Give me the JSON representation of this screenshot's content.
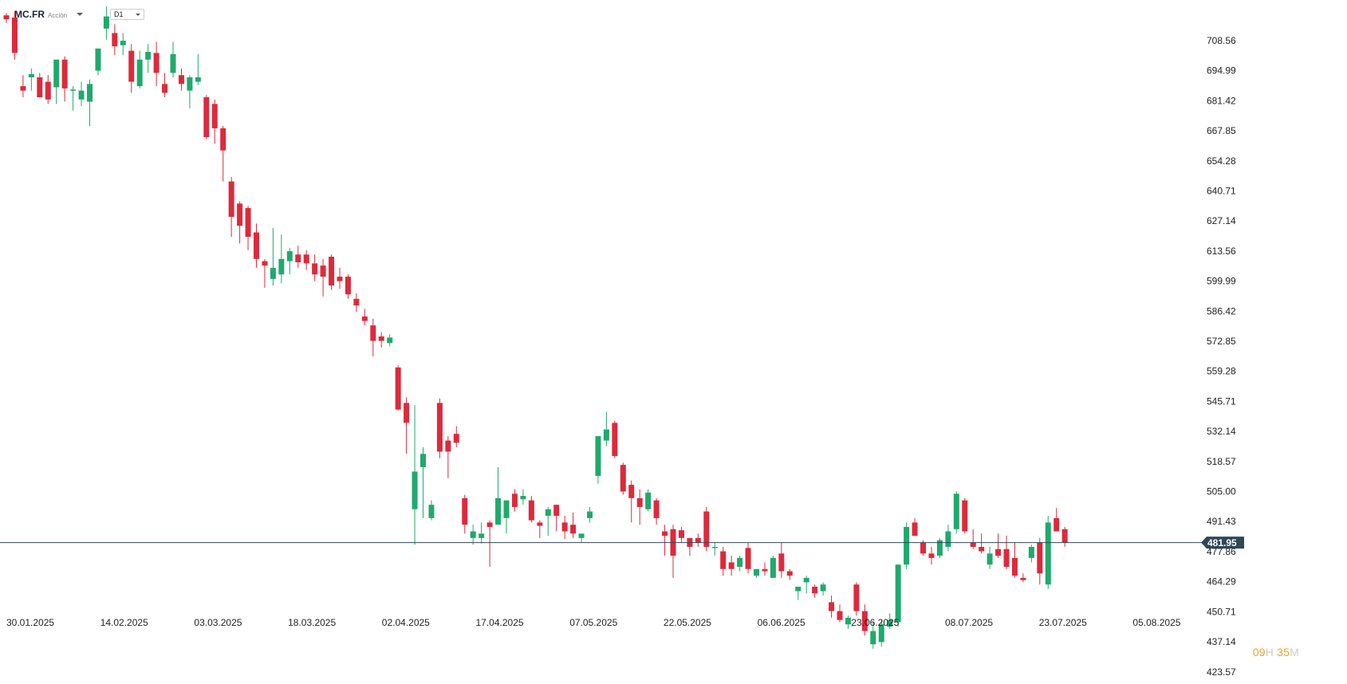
{
  "header": {
    "symbol": "MC.FR",
    "instrument_type": "Acción",
    "timeframe": "D1"
  },
  "countdown": {
    "hours": "09",
    "hours_unit": "H",
    "minutes": "35",
    "minutes_unit": "M"
  },
  "colors": {
    "up": "#1faa6d",
    "down": "#dc2a3c",
    "price_line": "#2f4858",
    "price_tag": "#2f4858"
  },
  "chart_data": {
    "type": "candlestick",
    "y_axis_ticks": [
      "708.56",
      "694.99",
      "681.42",
      "667.85",
      "654.28",
      "640.71",
      "627.14",
      "613.56",
      "599.99",
      "586.42",
      "572.85",
      "559.28",
      "545.71",
      "532.14",
      "518.57",
      "505.00",
      "491.43",
      "477.86",
      "464.29",
      "450.71",
      "437.14",
      "423.57"
    ],
    "x_axis_ticks": [
      "30.01.2025",
      "14.02.2025",
      "03.03.2025",
      "18.03.2025",
      "02.04.2025",
      "17.04.2025",
      "07.05.2025",
      "22.05.2025",
      "06.06.2025",
      "23.06.2025",
      "08.07.2025",
      "23.07.2025",
      "05.08.2025"
    ],
    "ylim": [
      423.57,
      722.13
    ],
    "current_price": "481.95",
    "ohlc": [
      [
        720.0,
        721.0,
        716.5,
        718.2
      ],
      [
        719.0,
        722.0,
        700.0,
        703.0
      ],
      [
        688.0,
        693.0,
        683.0,
        686.0
      ],
      [
        692.0,
        696.0,
        686.0,
        693.5
      ],
      [
        692.0,
        694.0,
        683.0,
        683.0
      ],
      [
        690.0,
        693.0,
        680.0,
        682.0
      ],
      [
        687.5,
        699.5,
        680.0,
        700.0
      ],
      [
        700.0,
        701.5,
        681.0,
        687.0
      ],
      [
        686.0,
        688.0,
        677.0,
        686.5
      ],
      [
        682.0,
        690.0,
        679.0,
        686.0
      ],
      [
        681.0,
        691.0,
        670.0,
        689.0
      ],
      [
        695.0,
        705.0,
        693.0,
        705.0
      ],
      [
        714.0,
        724.0,
        709.0,
        719.5
      ],
      [
        712.0,
        716.0,
        702.0,
        706.0
      ],
      [
        706.5,
        712.0,
        702.0,
        708.5
      ],
      [
        704.0,
        707.0,
        685.0,
        690.0
      ],
      [
        688.0,
        704.0,
        687.0,
        700.0
      ],
      [
        700.0,
        707.0,
        694.0,
        703.5
      ],
      [
        703.0,
        708.0,
        688.0,
        694.0
      ],
      [
        689.0,
        694.0,
        683.0,
        685.0
      ],
      [
        694.0,
        708.0,
        692.0,
        702.5
      ],
      [
        693.0,
        696.0,
        686.0,
        689.0
      ],
      [
        686.0,
        693.0,
        678.0,
        692.0
      ],
      [
        690.0,
        702.5,
        688.5,
        692.0
      ],
      [
        683.0,
        684.0,
        664.0,
        665.0
      ],
      [
        680.0,
        682.0,
        662.0,
        669.0
      ],
      [
        669.0,
        670.0,
        645.0,
        659.0
      ],
      [
        645.0,
        647.0,
        620.0,
        629.0
      ],
      [
        635.0,
        636.0,
        617.0,
        625.0
      ],
      [
        633.0,
        634.0,
        614.0,
        620.0
      ],
      [
        622.0,
        626.0,
        606.0,
        610.0
      ],
      [
        609.0,
        610.0,
        597.0,
        607.0
      ],
      [
        601.0,
        624.0,
        598.0,
        606.0
      ],
      [
        603.0,
        621.0,
        599.0,
        610.0
      ],
      [
        609.0,
        615.0,
        603.0,
        613.5
      ],
      [
        612.0,
        616.0,
        606.0,
        608.5
      ],
      [
        612.0,
        614.0,
        605.0,
        608.0
      ],
      [
        608.0,
        612.0,
        600.0,
        603.0
      ],
      [
        607.0,
        610.0,
        593.0,
        602.0
      ],
      [
        611.0,
        612.0,
        596.0,
        598.0
      ],
      [
        602.0,
        606.0,
        596.5,
        600.0
      ],
      [
        602.0,
        603.0,
        592.0,
        594.0
      ],
      [
        592.0,
        594.5,
        586.0,
        589.0
      ],
      [
        584.0,
        587.5,
        580.0,
        582.0
      ],
      [
        580.0,
        583.0,
        566.0,
        573.0
      ],
      [
        575.0,
        577.0,
        570.0,
        573.0
      ],
      [
        572.0,
        576.0,
        570.5,
        574.5
      ],
      [
        561.0,
        562.0,
        541.5,
        542.0
      ],
      [
        545.0,
        547.5,
        522.0,
        536.0
      ],
      [
        497.0,
        544.0,
        481.0,
        514.0
      ],
      [
        516.0,
        525.0,
        493.0,
        522.0
      ],
      [
        493.0,
        501.0,
        492.0,
        499.0
      ],
      [
        545.0,
        547.0,
        520.0,
        523.0
      ],
      [
        528.0,
        530.0,
        511.0,
        523.0
      ],
      [
        531.0,
        534.5,
        525.0,
        527.0
      ],
      [
        502.0,
        503.5,
        486.0,
        490.0
      ],
      [
        484.0,
        490.0,
        481.0,
        487.0
      ],
      [
        484.0,
        491.0,
        481.5,
        486.0
      ],
      [
        491.0,
        492.0,
        471.0,
        489.0
      ],
      [
        490.0,
        516.0,
        490.0,
        502.0
      ],
      [
        493.0,
        500.0,
        486.0,
        501.0
      ],
      [
        504.0,
        506.0,
        496.0,
        498.0
      ],
      [
        501.5,
        506.0,
        499.0,
        503.0
      ],
      [
        501.0,
        503.0,
        491.0,
        492.0
      ],
      [
        491.0,
        492.0,
        484.0,
        489.5
      ],
      [
        494.0,
        498.0,
        485.0,
        497.0
      ],
      [
        499.0,
        499.0,
        487.0,
        494.0
      ],
      [
        491.0,
        494.0,
        483.5,
        487.0
      ],
      [
        490.0,
        495.5,
        484.0,
        486.0
      ],
      [
        484.0,
        485.0,
        482.0,
        486.0
      ],
      [
        493.0,
        498.0,
        491.0,
        496.0
      ],
      [
        512.0,
        530.0,
        508.5,
        530.0
      ],
      [
        528.0,
        541.0,
        525.5,
        533.0
      ],
      [
        536.0,
        537.0,
        520.0,
        521.0
      ],
      [
        517.0,
        518.0,
        503.5,
        505.0
      ],
      [
        508.0,
        510.0,
        491.0,
        502.0
      ],
      [
        502.0,
        506.0,
        490.0,
        498.0
      ],
      [
        497.0,
        506.0,
        496.0,
        504.5
      ],
      [
        501.0,
        502.0,
        490.0,
        493.0
      ],
      [
        487.0,
        490.0,
        476.0,
        485.0
      ],
      [
        488.0,
        490.0,
        466.0,
        476.0
      ],
      [
        487.5,
        489.0,
        482.0,
        484.0
      ],
      [
        484.0,
        484.0,
        476.0,
        480.0
      ],
      [
        484.0,
        486.0,
        480.0,
        482.0
      ],
      [
        496.0,
        498.0,
        478.0,
        480.0
      ],
      [
        480.0,
        482.0,
        476.0,
        480.0
      ],
      [
        478.0,
        480.0,
        467.0,
        470.0
      ],
      [
        473.0,
        476.0,
        467.0,
        470.0
      ],
      [
        471.0,
        476.0,
        469.0,
        475.0
      ],
      [
        479.5,
        482.0,
        468.0,
        470.0
      ],
      [
        467.0,
        470.0,
        466.0,
        470.0
      ],
      [
        470.0,
        473.0,
        467.0,
        469.0
      ],
      [
        466.0,
        476.0,
        466.0,
        475.0
      ],
      [
        477.0,
        482.0,
        466.0,
        469.0
      ],
      [
        469.0,
        470.0,
        465.0,
        467.0
      ],
      [
        460.0,
        462.0,
        456.0,
        462.0
      ],
      [
        464.0,
        467.0,
        459.0,
        466.0
      ],
      [
        462.0,
        463.0,
        457.0,
        459.0
      ],
      [
        460.0,
        464.0,
        458.0,
        463.0
      ],
      [
        455.0,
        458.0,
        448.0,
        451.0
      ],
      [
        451.0,
        454.0,
        446.0,
        447.0
      ],
      [
        445.0,
        449.0,
        443.0,
        448.0
      ],
      [
        463.0,
        464.0,
        449.0,
        451.0
      ],
      [
        451.0,
        454.0,
        440.0,
        442.0
      ],
      [
        436.0,
        446.0,
        434.0,
        442.0
      ],
      [
        437.0,
        447.0,
        435.0,
        445.0
      ],
      [
        444.0,
        450.0,
        443.0,
        447.0
      ],
      [
        446.0,
        472.0,
        444.0,
        472.0
      ],
      [
        472.0,
        491.0,
        470.0,
        489.0
      ],
      [
        491.0,
        493.0,
        485.0,
        485.0
      ],
      [
        482.0,
        483.0,
        476.0,
        477.0
      ],
      [
        477.0,
        480.0,
        472.0,
        475.0
      ],
      [
        476.0,
        484.0,
        475.0,
        483.0
      ],
      [
        480.0,
        490.0,
        478.0,
        487.0
      ],
      [
        488.0,
        505.0,
        486.0,
        504.0
      ],
      [
        501.0,
        502.0,
        486.0,
        487.0
      ],
      [
        482.0,
        488.0,
        479.0,
        480.0
      ],
      [
        480.0,
        486.0,
        477.0,
        478.0
      ],
      [
        472.0,
        480.0,
        470.0,
        477.0
      ],
      [
        479.0,
        486.0,
        475.0,
        476.0
      ],
      [
        479.0,
        485.0,
        470.0,
        471.0
      ],
      [
        475.0,
        482.0,
        466.0,
        467.0
      ],
      [
        466.0,
        468.0,
        464.0,
        465.0
      ],
      [
        475.0,
        481.0,
        473.0,
        480.0
      ],
      [
        482.0,
        484.0,
        463.0,
        468.0
      ],
      [
        463.0,
        494.0,
        461.0,
        491.0
      ],
      [
        493.0,
        497.5,
        487.0,
        487.0
      ],
      [
        488.0,
        489.0,
        480.0,
        481.95
      ]
    ]
  }
}
